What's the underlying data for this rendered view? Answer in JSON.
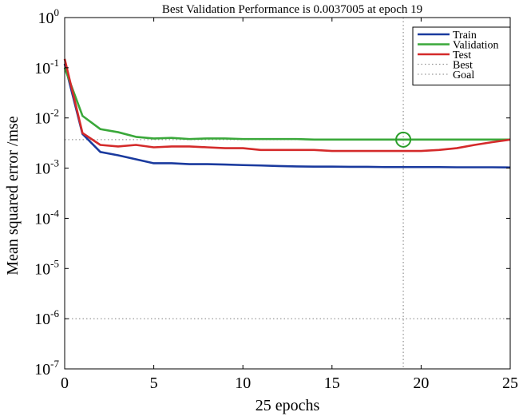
{
  "chart_data": {
    "type": "line",
    "title": "Best Validation Performance is 0.0037005 at epoch 19",
    "xlabel": "25 epochs",
    "ylabel": "Mean squared error /mse",
    "xlim": [
      0,
      25
    ],
    "ylim": [
      1e-07,
      1
    ],
    "y_scale": "log",
    "x_ticks": [
      0,
      5,
      10,
      15,
      20,
      25
    ],
    "y_tick_exponents": [
      0,
      -1,
      -2,
      -3,
      -4,
      -5,
      -6,
      -7
    ],
    "y_tick_base": "10",
    "grid": false,
    "legend_position": "top-right",
    "series": [
      {
        "name": "Train",
        "color": "#1a3a9e",
        "x": [
          0,
          1,
          2,
          3,
          4,
          5,
          6,
          7,
          8,
          9,
          10,
          11,
          12,
          13,
          14,
          15,
          16,
          17,
          18,
          19,
          20,
          21,
          22,
          23,
          24,
          25
        ],
        "y": [
          0.12,
          0.0048,
          0.0021,
          0.0018,
          0.0015,
          0.00125,
          0.00125,
          0.0012,
          0.0012,
          0.00118,
          0.00115,
          0.00113,
          0.0011,
          0.00108,
          0.00107,
          0.00107,
          0.00106,
          0.00106,
          0.00105,
          0.00105,
          0.00105,
          0.00105,
          0.00104,
          0.00104,
          0.00104,
          0.00103
        ]
      },
      {
        "name": "Validation",
        "color": "#3aa83a",
        "x": [
          0,
          1,
          2,
          3,
          4,
          5,
          6,
          7,
          8,
          9,
          10,
          11,
          12,
          13,
          14,
          15,
          16,
          17,
          18,
          19,
          20,
          21,
          22,
          23,
          24,
          25
        ],
        "y": [
          0.1,
          0.011,
          0.006,
          0.0052,
          0.0042,
          0.0039,
          0.004,
          0.0038,
          0.0039,
          0.0039,
          0.0038,
          0.0038,
          0.0038,
          0.0038,
          0.0037,
          0.0037,
          0.0037,
          0.0037,
          0.0037,
          0.0037005,
          0.0037,
          0.0037,
          0.0037,
          0.0037,
          0.0037,
          0.0037
        ]
      },
      {
        "name": "Test",
        "color": "#d42a2a",
        "x": [
          0,
          1,
          2,
          3,
          4,
          5,
          6,
          7,
          8,
          9,
          10,
          11,
          12,
          13,
          14,
          15,
          16,
          17,
          18,
          19,
          20,
          21,
          22,
          23,
          24,
          25
        ],
        "y": [
          0.15,
          0.005,
          0.0029,
          0.0027,
          0.0029,
          0.0026,
          0.0027,
          0.0027,
          0.0026,
          0.0025,
          0.0025,
          0.0023,
          0.0023,
          0.0023,
          0.0023,
          0.0022,
          0.0022,
          0.0022,
          0.0022,
          0.0022,
          0.0022,
          0.0023,
          0.0025,
          0.0029,
          0.0033,
          0.0037
        ]
      }
    ],
    "best": {
      "label": "Best",
      "epoch": 19,
      "value": 0.0037005,
      "color": "#999999"
    },
    "goal": {
      "label": "Goal",
      "value": 1e-06,
      "color": "#999999"
    },
    "best_marker_color": "#2a9e2a"
  }
}
